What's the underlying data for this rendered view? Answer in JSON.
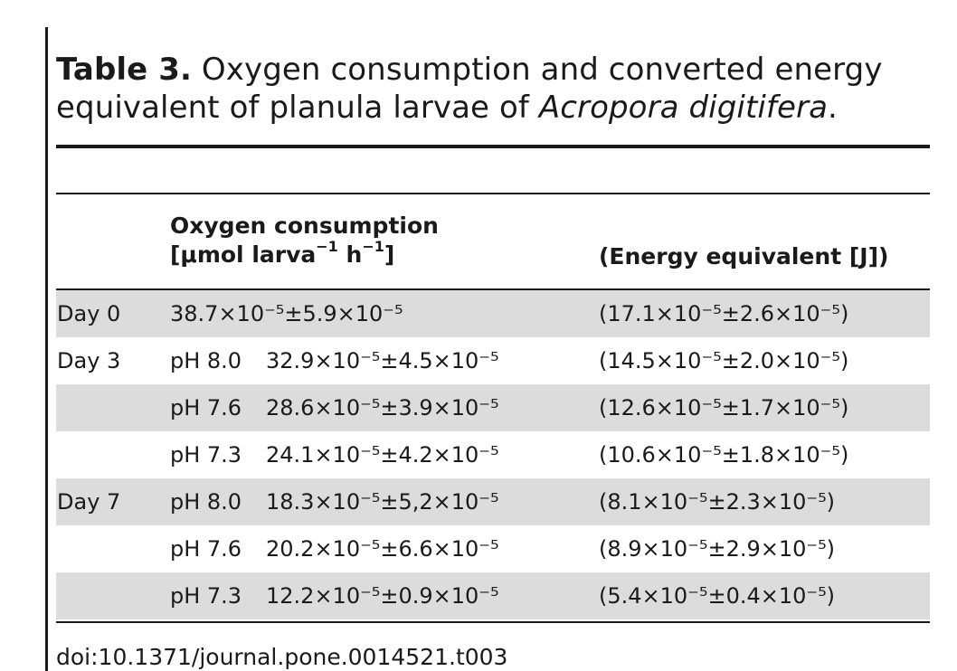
{
  "caption": {
    "label": "Table 3.",
    "text_before": " Oxygen consumption and converted energy equivalent of planula larvae of ",
    "species": "Acropora digitifera",
    "text_after": "."
  },
  "header": {
    "oxygen_line1": "Oxygen consumption",
    "oxygen_unit_open": "[μmol larva",
    "oxygen_unit_exp1": "−1",
    "oxygen_unit_mid": " h",
    "oxygen_unit_exp2": "−1",
    "oxygen_unit_close": "]",
    "energy": "(Energy equivalent [J])"
  },
  "rows": [
    {
      "day": "Day 0",
      "ph": "",
      "oxygen": "38.7×10⁻⁵±5.9×10⁻⁵",
      "energy": "(17.1×10⁻⁵±2.6×10⁻⁵)"
    },
    {
      "day": "Day 3",
      "ph": "pH 8.0",
      "oxygen": "32.9×10⁻⁵±4.5×10⁻⁵",
      "energy": "(14.5×10⁻⁵±2.0×10⁻⁵)"
    },
    {
      "day": "",
      "ph": "pH 7.6",
      "oxygen": "28.6×10⁻⁵±3.9×10⁻⁵",
      "energy": "(12.6×10⁻⁵±1.7×10⁻⁵)"
    },
    {
      "day": "",
      "ph": "pH 7.3",
      "oxygen": "24.1×10⁻⁵±4.2×10⁻⁵",
      "energy": "(10.6×10⁻⁵±1.8×10⁻⁵)"
    },
    {
      "day": "Day 7",
      "ph": "pH 8.0",
      "oxygen": "18.3×10⁻⁵±5,2×10⁻⁵",
      "energy": "(8.1×10⁻⁵±2.3×10⁻⁵)"
    },
    {
      "day": "",
      "ph": "pH 7.6",
      "oxygen": "20.2×10⁻⁵±6.6×10⁻⁵",
      "energy": "(8.9×10⁻⁵±2.9×10⁻⁵)"
    },
    {
      "day": "",
      "ph": "pH 7.3",
      "oxygen": "12.2×10⁻⁵±0.9×10⁻⁵",
      "energy": "(5.4×10⁻⁵±0.4×10⁻⁵)"
    }
  ],
  "doi": "doi:10.1371/journal.pone.0014521.t003"
}
